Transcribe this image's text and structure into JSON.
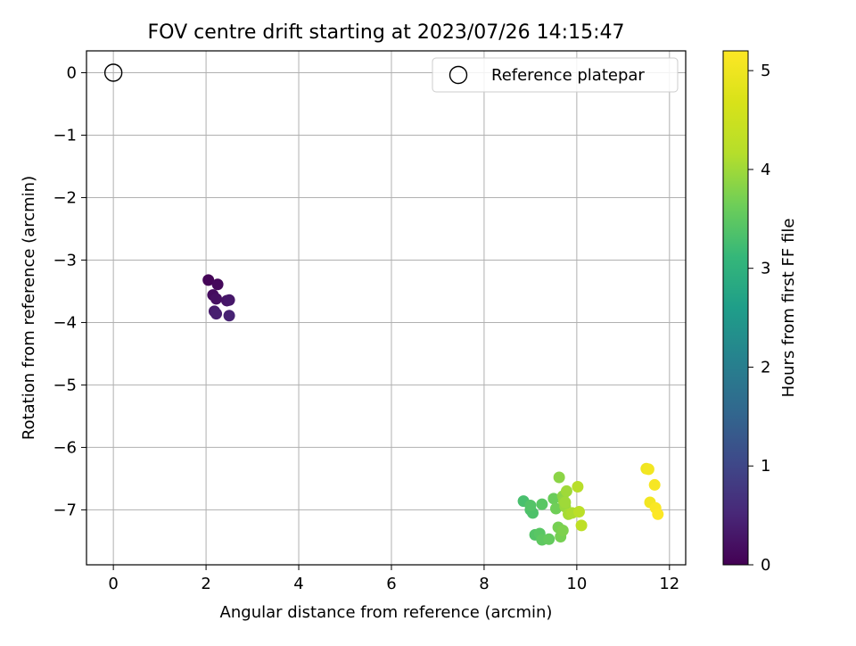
{
  "chart_data": {
    "type": "scatter",
    "title": "FOV centre drift starting at 2023/07/26 14:15:47",
    "xlabel": "Angular distance from reference (arcmin)",
    "ylabel": "Rotation from reference (arcmin)",
    "xlim": [
      -0.58,
      12.35
    ],
    "ylim": [
      -7.88,
      0.35
    ],
    "xticks": [
      0,
      2,
      4,
      6,
      8,
      10,
      12
    ],
    "xtick_labels": [
      "0",
      "2",
      "4",
      "6",
      "8",
      "10",
      "12"
    ],
    "yticks": [
      0,
      -1,
      -2,
      -3,
      -4,
      -5,
      -6,
      -7
    ],
    "ytick_labels": [
      "0",
      "−1",
      "−2",
      "−3",
      "−4",
      "−5",
      "−6",
      "−7"
    ],
    "grid": true,
    "legend": {
      "placement": "top-right",
      "entries": [
        {
          "label": "Reference platepar",
          "marker": "open-circle"
        }
      ]
    },
    "reference_point": {
      "x": 0,
      "y": 0
    },
    "colorbar": {
      "label": "Hours from first FF file",
      "colormap": "viridis",
      "range": [
        0,
        5.2
      ],
      "ticks": [
        0,
        1,
        2,
        3,
        4,
        5
      ],
      "tick_labels": [
        "0",
        "1",
        "2",
        "3",
        "4",
        "5"
      ]
    },
    "points": [
      {
        "x": 2.05,
        "y": -3.32,
        "t": 0.05
      },
      {
        "x": 2.25,
        "y": -3.39,
        "t": 0.1
      },
      {
        "x": 2.15,
        "y": -3.56,
        "t": 0.15
      },
      {
        "x": 2.22,
        "y": -3.62,
        "t": 0.2
      },
      {
        "x": 2.45,
        "y": -3.65,
        "t": 0.25
      },
      {
        "x": 2.5,
        "y": -3.64,
        "t": 0.3
      },
      {
        "x": 2.18,
        "y": -3.82,
        "t": 0.35
      },
      {
        "x": 2.22,
        "y": -3.86,
        "t": 0.4
      },
      {
        "x": 2.5,
        "y": -3.89,
        "t": 0.45
      },
      {
        "x": 8.85,
        "y": -6.86,
        "t": 3.3
      },
      {
        "x": 9.0,
        "y": -7.0,
        "t": 3.35
      },
      {
        "x": 9.05,
        "y": -7.05,
        "t": 3.35
      },
      {
        "x": 9.0,
        "y": -6.93,
        "t": 3.4
      },
      {
        "x": 9.25,
        "y": -6.91,
        "t": 3.45
      },
      {
        "x": 9.1,
        "y": -7.4,
        "t": 3.4
      },
      {
        "x": 9.2,
        "y": -7.38,
        "t": 3.45
      },
      {
        "x": 9.25,
        "y": -7.48,
        "t": 3.5
      },
      {
        "x": 9.4,
        "y": -7.47,
        "t": 3.55
      },
      {
        "x": 9.5,
        "y": -6.82,
        "t": 3.6
      },
      {
        "x": 9.55,
        "y": -6.98,
        "t": 3.65
      },
      {
        "x": 9.6,
        "y": -7.28,
        "t": 3.7
      },
      {
        "x": 9.65,
        "y": -7.43,
        "t": 3.7
      },
      {
        "x": 9.7,
        "y": -7.33,
        "t": 3.75
      },
      {
        "x": 9.62,
        "y": -6.48,
        "t": 3.85
      },
      {
        "x": 9.7,
        "y": -6.78,
        "t": 3.85
      },
      {
        "x": 9.72,
        "y": -6.86,
        "t": 3.9
      },
      {
        "x": 9.75,
        "y": -6.95,
        "t": 3.95
      },
      {
        "x": 9.78,
        "y": -6.7,
        "t": 4.0
      },
      {
        "x": 9.75,
        "y": -6.88,
        "t": 4.0
      },
      {
        "x": 9.82,
        "y": -7.07,
        "t": 4.05
      },
      {
        "x": 9.9,
        "y": -7.05,
        "t": 4.1
      },
      {
        "x": 10.02,
        "y": -6.63,
        "t": 4.2
      },
      {
        "x": 10.05,
        "y": -7.03,
        "t": 4.25
      },
      {
        "x": 10.1,
        "y": -7.25,
        "t": 4.3
      },
      {
        "x": 11.5,
        "y": -6.34,
        "t": 5.0
      },
      {
        "x": 11.55,
        "y": -6.35,
        "t": 5.05
      },
      {
        "x": 11.58,
        "y": -6.88,
        "t": 5.05
      },
      {
        "x": 11.68,
        "y": -6.6,
        "t": 5.1
      },
      {
        "x": 11.7,
        "y": -6.97,
        "t": 5.15
      },
      {
        "x": 11.75,
        "y": -7.07,
        "t": 5.18
      }
    ]
  }
}
